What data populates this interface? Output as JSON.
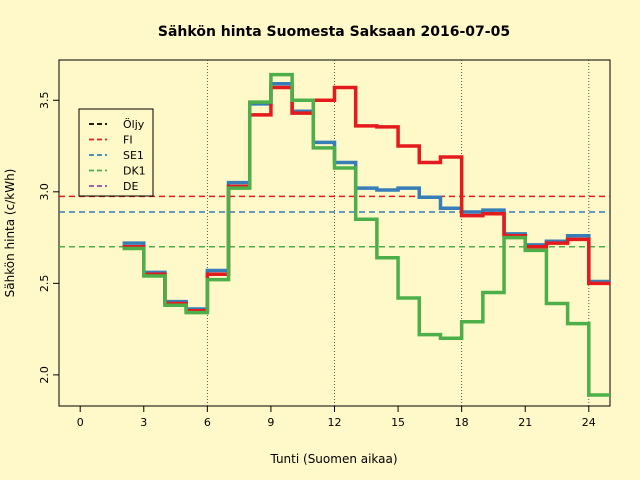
{
  "chart_data": {
    "type": "line",
    "title": "Sähkön hinta Suomesta Saksaan 2016-07-05",
    "xlabel": "Tunti (Suomen aikaa)",
    "ylabel": "Sähkön hinta (c/kWh)",
    "xlim": [
      -1,
      25
    ],
    "ylim": [
      1.83,
      3.72
    ],
    "x_ticks": [
      0,
      3,
      6,
      9,
      12,
      15,
      18,
      21,
      24
    ],
    "y_ticks": [
      2.0,
      2.5,
      3.0,
      3.5
    ],
    "vlines": [
      6,
      12,
      18,
      24
    ],
    "step": "post",
    "legend_position": "top-left",
    "legend": [
      {
        "name": "Öljy",
        "color": "#000000"
      },
      {
        "name": "FI",
        "color": "#E41A1C"
      },
      {
        "name": "SE1",
        "color": "#377EB8"
      },
      {
        "name": "DK1",
        "color": "#4DAF4A"
      },
      {
        "name": "DE",
        "color": "#984EA3"
      }
    ],
    "hlines": [
      {
        "name": "FI",
        "color": "#E41A1C",
        "value": 2.975
      },
      {
        "name": "SE1",
        "color": "#377EB8",
        "value": 2.89
      },
      {
        "name": "DK1",
        "color": "#4DAF4A",
        "value": 2.7
      }
    ],
    "series": [
      {
        "name": "SE1",
        "color": "#377EB8",
        "x": [
          2,
          3,
          4,
          5,
          6,
          7,
          8,
          9,
          10,
          11,
          12,
          13,
          14,
          15,
          16,
          17,
          18,
          19,
          20,
          21,
          22,
          23,
          24,
          25
        ],
        "values": [
          2.72,
          2.56,
          2.4,
          2.36,
          2.57,
          3.05,
          3.48,
          3.59,
          3.44,
          3.27,
          3.16,
          3.02,
          3.01,
          3.02,
          2.97,
          2.91,
          2.89,
          2.9,
          2.77,
          2.71,
          2.73,
          2.76,
          2.51,
          2.51
        ]
      },
      {
        "name": "FI",
        "color": "#E41A1C",
        "x": [
          2,
          3,
          4,
          5,
          6,
          7,
          8,
          9,
          10,
          11,
          12,
          13,
          14,
          15,
          16,
          17,
          18,
          19,
          20,
          21,
          22,
          23,
          24,
          25
        ],
        "values": [
          2.7,
          2.55,
          2.39,
          2.35,
          2.55,
          3.03,
          3.42,
          3.57,
          3.43,
          3.5,
          3.57,
          3.36,
          3.355,
          3.25,
          3.16,
          3.19,
          2.87,
          2.88,
          2.76,
          2.7,
          2.72,
          2.74,
          2.5,
          2.5
        ]
      },
      {
        "name": "DK1",
        "color": "#4DAF4A",
        "x": [
          2,
          3,
          4,
          5,
          6,
          7,
          8,
          9,
          10,
          11,
          12,
          13,
          14,
          15,
          16,
          17,
          18,
          19,
          20,
          21,
          22,
          23,
          24,
          25
        ],
        "values": [
          2.69,
          2.54,
          2.38,
          2.34,
          2.52,
          3.02,
          3.49,
          3.64,
          3.5,
          3.24,
          3.13,
          2.85,
          2.64,
          2.42,
          2.22,
          2.2,
          2.29,
          2.45,
          2.75,
          2.68,
          2.39,
          2.28,
          1.89,
          1.89
        ]
      }
    ]
  }
}
